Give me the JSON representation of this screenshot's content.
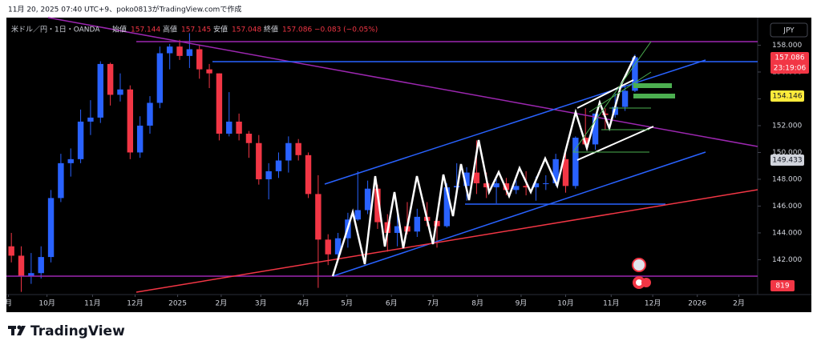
{
  "caption": "11月 20, 2025 07:40 UTC+9、poko0813がTradingView.comで作成",
  "legend": {
    "symbol": "米ドル／円・1日・OANDA",
    "open_label": "始値",
    "open": "157.144",
    "high_label": "高値",
    "high": "157.145",
    "low_label": "安値",
    "low": "157.048",
    "close_label": "終値",
    "close": "157.086",
    "change": "−0.083 (−0.05%)"
  },
  "currency_button": "JPY",
  "price_badges": {
    "last": "157.086",
    "countdown": "23:19:06",
    "yellow": "154.146",
    "gray": "149.433",
    "volume": "819"
  },
  "logo": "TradingView",
  "chart_data": {
    "type": "candlestick",
    "up_color": "#2962ff",
    "down_color": "#f23645",
    "xlim": [
      -0.5,
      75.4
    ],
    "xticks": [
      {
        "value": -0.3,
        "label": "月"
      },
      {
        "value": 3.6,
        "label": "10月"
      },
      {
        "value": 8.2,
        "label": "11月"
      },
      {
        "value": 12.5,
        "label": "12月"
      },
      {
        "value": 16.8,
        "label": "2025"
      },
      {
        "value": 21.2,
        "label": "2月"
      },
      {
        "value": 25.2,
        "label": "3月"
      },
      {
        "value": 29.5,
        "label": "4月"
      },
      {
        "value": 33.9,
        "label": "5月"
      },
      {
        "value": 38.4,
        "label": "6月"
      },
      {
        "value": 42.6,
        "label": "7月"
      },
      {
        "value": 47.1,
        "label": "8月"
      },
      {
        "value": 51.5,
        "label": "9月"
      },
      {
        "value": 56.0,
        "label": "10月"
      },
      {
        "value": 60.6,
        "label": "11月"
      },
      {
        "value": 64.8,
        "label": "12月"
      },
      {
        "value": 69.3,
        "label": "2026"
      },
      {
        "value": 73.5,
        "label": "2月"
      }
    ],
    "ylim": [
      139.4,
      159.7
    ],
    "yticks": [
      {
        "value": 142,
        "label": "142.000"
      },
      {
        "value": 144,
        "label": "144.000"
      },
      {
        "value": 146,
        "label": "146.000"
      },
      {
        "value": 148,
        "label": "148.000"
      },
      {
        "value": 150,
        "label": "150.000"
      },
      {
        "value": 152,
        "label": "152.000"
      },
      {
        "value": 154,
        "label": "154.000"
      },
      {
        "value": 156,
        "label": "156.000"
      },
      {
        "value": 158,
        "label": "158.000"
      }
    ],
    "open": [
      143.0,
      142.3,
      140.8,
      141.0,
      142.2,
      146.6,
      149.2,
      149.5,
      152.3,
      152.6,
      156.6,
      154.3,
      154.7,
      150.0,
      152.0,
      153.7,
      157.4,
      157.9,
      157.2,
      157.7,
      156.2,
      155.9,
      151.4,
      152.3,
      151.4,
      150.7,
      148.0,
      148.6,
      149.4,
      150.7,
      149.8,
      146.9,
      143.5,
      142.4,
      143.6,
      145.0,
      145.7,
      147.3,
      144.8,
      144.0,
      144.5,
      144.1,
      145.2,
      144.9,
      144.5,
      147.4,
      147.5,
      148.5,
      147.7,
      147.4,
      147.7,
      147.2,
      147.5,
      147.4,
      147.7,
      147.7,
      149.5,
      147.5,
      151.1,
      150.6,
      152.9,
      152.8,
      153.4,
      154.6
    ],
    "high": [
      144.0,
      143.0,
      142.5,
      143.0,
      147.2,
      149.9,
      150.3,
      153.2,
      153.9,
      156.8,
      156.7,
      155.9,
      155.0,
      152.7,
      154.2,
      157.9,
      158.1,
      158.4,
      158.9,
      158.0,
      156.6,
      155.9,
      154.5,
      152.9,
      151.6,
      151.3,
      149.2,
      150.0,
      151.2,
      151.0,
      150.0,
      148.3,
      143.9,
      144.0,
      145.5,
      148.6,
      147.9,
      147.6,
      145.4,
      145.3,
      146.3,
      145.8,
      146.3,
      145.4,
      147.7,
      149.2,
      148.9,
      150.9,
      148.5,
      148.0,
      148.1,
      147.9,
      148.6,
      148.2,
      148.3,
      149.9,
      150.0,
      151.2,
      153.3,
      152.9,
      153.3,
      154.4,
      155.1,
      157.3
    ],
    "low": [
      141.8,
      139.6,
      140.2,
      140.6,
      141.8,
      146.3,
      148.2,
      149.2,
      151.3,
      152.2,
      153.5,
      153.8,
      149.5,
      149.6,
      151.4,
      153.3,
      156.2,
      156.9,
      156.3,
      155.5,
      154.8,
      150.9,
      151.2,
      150.9,
      149.6,
      147.6,
      146.5,
      148.1,
      148.5,
      149.4,
      146.6,
      139.9,
      141.6,
      141.9,
      142.9,
      144.9,
      145.4,
      144.3,
      142.6,
      143.0,
      143.9,
      143.7,
      144.5,
      142.9,
      144.4,
      147.1,
      146.4,
      146.9,
      146.6,
      146.2,
      146.8,
      146.9,
      146.8,
      146.4,
      147.2,
      147.5,
      147.0,
      147.3,
      150.5,
      150.2,
      151.7,
      152.6,
      153.1,
      154.5
    ],
    "close": [
      142.3,
      140.8,
      141.0,
      142.2,
      146.6,
      149.2,
      149.5,
      152.3,
      152.6,
      156.6,
      154.3,
      154.7,
      150.0,
      152.0,
      153.7,
      157.4,
      157.9,
      157.2,
      157.7,
      156.2,
      155.9,
      151.4,
      152.3,
      151.4,
      150.7,
      148.0,
      148.6,
      149.4,
      150.7,
      149.8,
      146.9,
      143.5,
      142.4,
      143.6,
      145.0,
      145.7,
      147.3,
      144.8,
      144.0,
      144.5,
      144.1,
      145.2,
      144.9,
      144.5,
      147.4,
      147.5,
      148.5,
      147.7,
      147.4,
      147.7,
      147.2,
      147.5,
      147.4,
      147.7,
      147.7,
      149.5,
      147.5,
      151.1,
      150.6,
      152.9,
      152.8,
      153.4,
      154.6,
      157.1
    ]
  }
}
